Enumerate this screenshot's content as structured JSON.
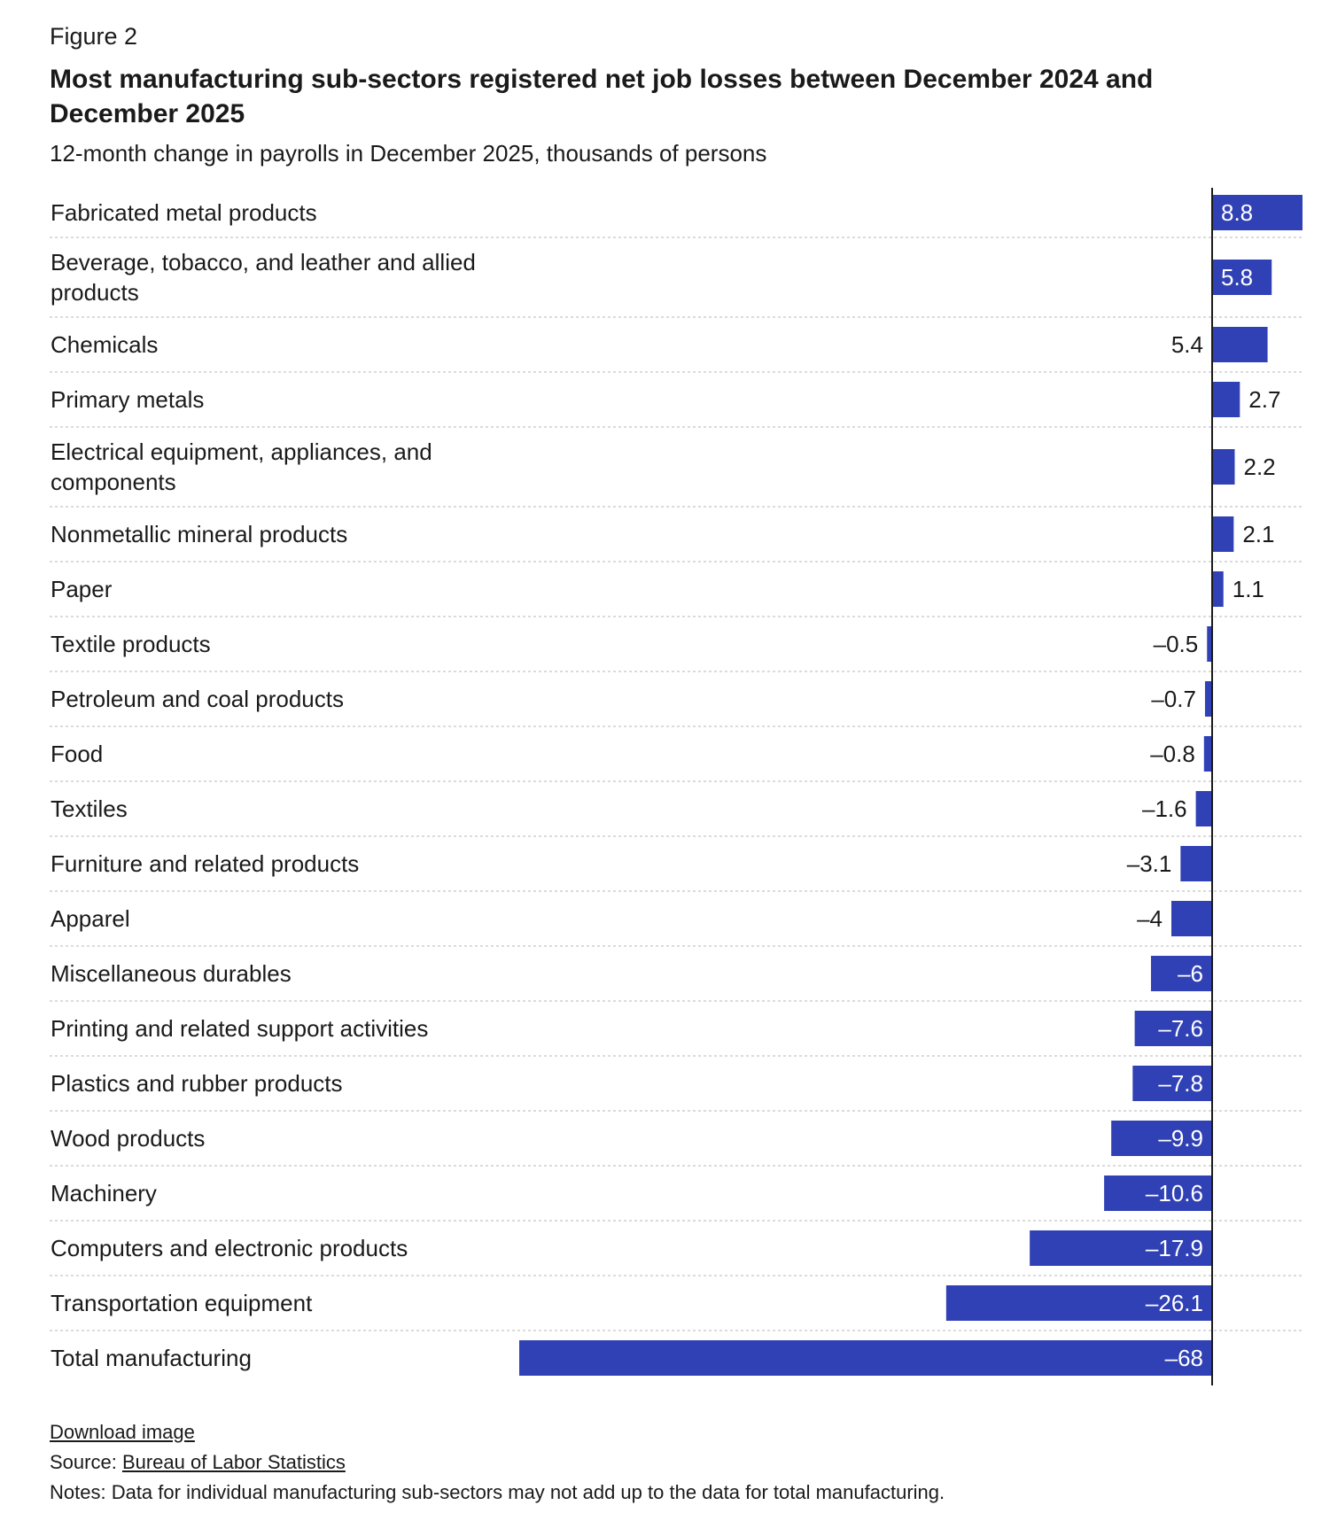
{
  "figure_label": "Figure 2",
  "chart_data": {
    "type": "bar",
    "orientation": "horizontal",
    "title": "Most manufacturing sub-sectors registered net job losses between December 2024 and December 2025",
    "subtitle": "12-month change in payrolls in December 2025, thousands of persons",
    "categories": [
      [
        "Fabricated metal products"
      ],
      [
        "Beverage, tobacco, and leather and allied",
        "products"
      ],
      [
        "Chemicals"
      ],
      [
        "Primary metals"
      ],
      [
        "Electrical equipment, appliances, and",
        "components"
      ],
      [
        "Nonmetallic mineral products"
      ],
      [
        "Paper"
      ],
      [
        "Textile products"
      ],
      [
        "Petroleum and coal products"
      ],
      [
        "Food"
      ],
      [
        "Textiles"
      ],
      [
        "Furniture and related products"
      ],
      [
        "Apparel"
      ],
      [
        "Miscellaneous durables"
      ],
      [
        "Printing and related support activities"
      ],
      [
        "Plastics and rubber products"
      ],
      [
        "Wood products"
      ],
      [
        "Machinery"
      ],
      [
        "Computers and electronic products"
      ],
      [
        "Transportation equipment"
      ],
      [
        "Total manufacturing"
      ]
    ],
    "values": [
      8.8,
      5.8,
      5.4,
      2.7,
      2.2,
      2.1,
      1.1,
      -0.5,
      -0.7,
      -0.8,
      -1.6,
      -3.1,
      -4,
      -6,
      -7.6,
      -7.8,
      -9.9,
      -10.6,
      -17.9,
      -26.1,
      -68
    ],
    "value_labels": [
      "8.8",
      "5.8",
      "5.4",
      "2.7",
      "2.2",
      "2.1",
      "1.1",
      "–0.5",
      "–0.7",
      "–0.8",
      "–1.6",
      "–3.1",
      "–4",
      "–6",
      "–7.6",
      "–7.8",
      "–9.9",
      "–10.6",
      "–17.9",
      "–26.1",
      "–68"
    ],
    "label_placement": [
      "inside",
      "inside",
      "outside",
      "outside",
      "outside",
      "outside",
      "outside",
      "outside",
      "outside",
      "outside",
      "outside",
      "outside",
      "outside",
      "inside",
      "inside",
      "inside",
      "inside",
      "inside",
      "inside",
      "inside",
      "inside"
    ],
    "xlim": [
      -68,
      8.8
    ],
    "grid": false,
    "colors": {
      "bar": "#3041b5",
      "inside_label": "#ffffff",
      "outside_label": "#1a1a1a",
      "axis": "#1a1a1a",
      "separator": "#cfcfcf"
    }
  },
  "footer": {
    "download_label": "Download image",
    "source_prefix": "Source: ",
    "source_link": "Bureau of Labor Statistics",
    "notes": "Notes: Data for individual manufacturing sub-sectors may not add up to the data for total manufacturing."
  }
}
